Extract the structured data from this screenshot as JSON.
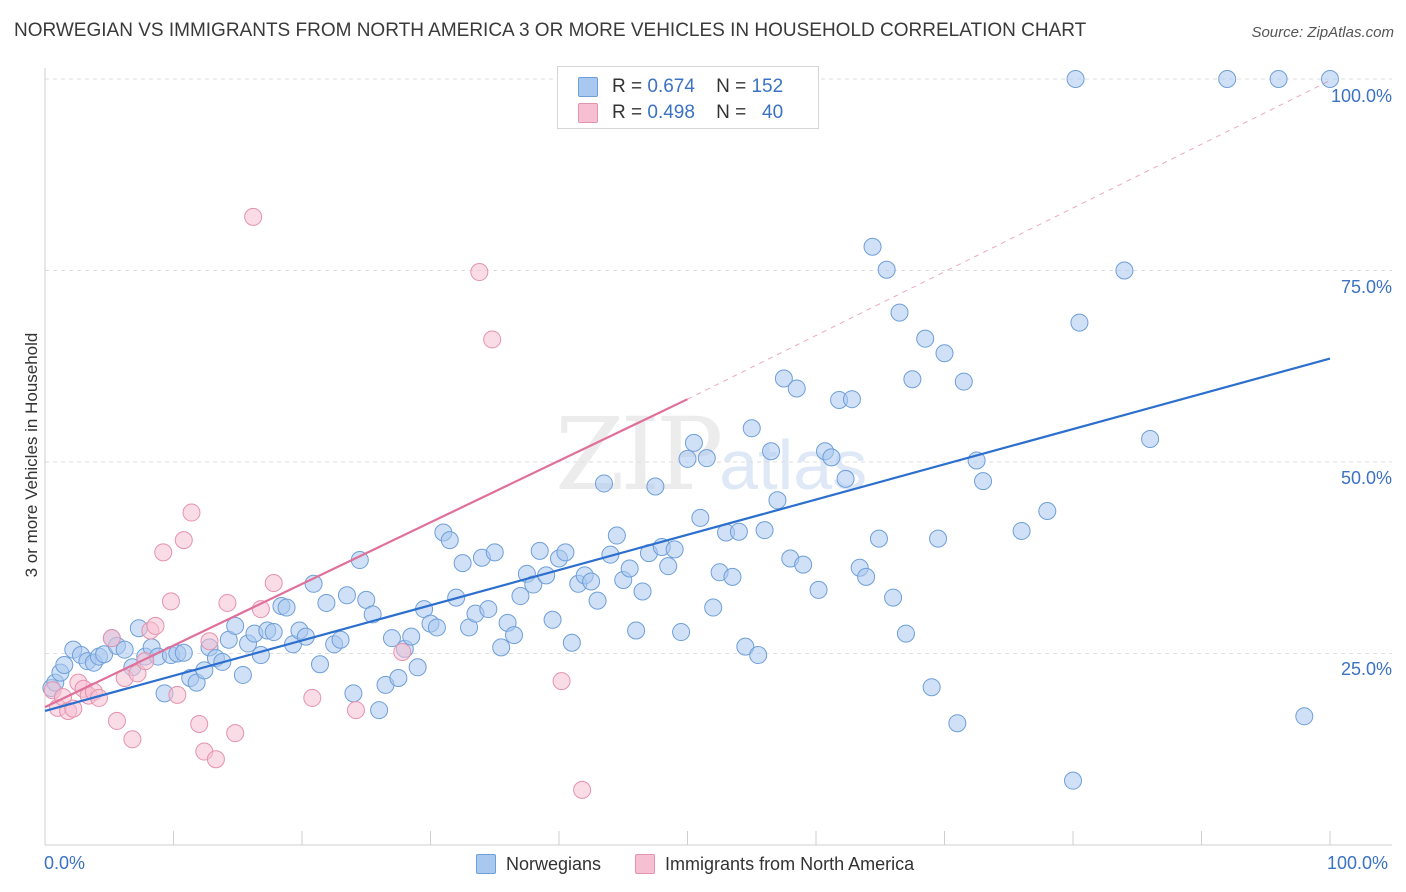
{
  "title": "NORWEGIAN VS IMMIGRANTS FROM NORTH AMERICA 3 OR MORE VEHICLES IN HOUSEHOLD CORRELATION CHART",
  "source": "Source: ZipAtlas.com",
  "watermark": {
    "zip": "ZIP",
    "atlas": "atlas"
  },
  "legend_top": [
    {
      "r_label": "R =",
      "r_value": "0.674",
      "n_label": "N =",
      "n_value": "152",
      "color": "#a9c8f0",
      "stroke": "#6f9fd8"
    },
    {
      "r_label": "R =",
      "r_value": "0.498",
      "n_label": "N =",
      "n_value": "40",
      "color": "#f6c0d2",
      "stroke": "#e593ad"
    }
  ],
  "chart_data": {
    "type": "scatter",
    "title": "NORWEGIAN VS IMMIGRANTS FROM NORTH AMERICA 3 OR MORE VEHICLES IN HOUSEHOLD CORRELATION CHART",
    "xlabel": "",
    "ylabel": "3 or more Vehicles in Household",
    "xlim": [
      0,
      100
    ],
    "ylim": [
      0,
      100
    ],
    "x_tick_labels": [
      "0.0%",
      "100.0%"
    ],
    "y_tick_labels": [
      {
        "value": 100,
        "label": "100.0%"
      },
      {
        "value": 75,
        "label": "75.0%"
      },
      {
        "value": 50,
        "label": "50.0%"
      },
      {
        "value": 25,
        "label": "25.0%"
      }
    ],
    "grid": true,
    "legend_position": "bottom",
    "series": [
      {
        "name": "Norwegians",
        "color": "#a9c8f0",
        "stroke": "#6f9fd8",
        "trend_color": "#2c6fce",
        "trend": {
          "x0": 0,
          "y0": 17.5,
          "x1": 100,
          "y1": 63.5
        },
        "points": [
          [
            0.5,
            20.5
          ],
          [
            0.8,
            21.2
          ],
          [
            1.2,
            22.5
          ],
          [
            1.5,
            23.5
          ],
          [
            2.2,
            25.5
          ],
          [
            2.8,
            24.8
          ],
          [
            3.3,
            24.0
          ],
          [
            3.8,
            23.8
          ],
          [
            4.2,
            24.6
          ],
          [
            4.6,
            24.9
          ],
          [
            5.2,
            27.0
          ],
          [
            5.6,
            26.0
          ],
          [
            6.2,
            25.5
          ],
          [
            6.8,
            23.2
          ],
          [
            7.3,
            28.3
          ],
          [
            7.8,
            24.6
          ],
          [
            8.3,
            25.8
          ],
          [
            8.8,
            24.6
          ],
          [
            9.3,
            19.8
          ],
          [
            9.8,
            24.8
          ],
          [
            10.3,
            25.0
          ],
          [
            10.8,
            25.1
          ],
          [
            11.3,
            21.8
          ],
          [
            11.8,
            21.2
          ],
          [
            12.4,
            22.8
          ],
          [
            12.8,
            25.8
          ],
          [
            13.3,
            24.4
          ],
          [
            13.8,
            23.9
          ],
          [
            14.3,
            26.8
          ],
          [
            14.8,
            28.6
          ],
          [
            15.4,
            22.2
          ],
          [
            15.8,
            26.3
          ],
          [
            16.3,
            27.6
          ],
          [
            16.8,
            24.8
          ],
          [
            17.3,
            28.0
          ],
          [
            17.8,
            27.8
          ],
          [
            18.4,
            31.2
          ],
          [
            18.8,
            31.0
          ],
          [
            19.3,
            26.2
          ],
          [
            19.8,
            28.0
          ],
          [
            20.3,
            27.2
          ],
          [
            20.9,
            34.1
          ],
          [
            21.4,
            23.6
          ],
          [
            21.9,
            31.6
          ],
          [
            22.5,
            26.2
          ],
          [
            23.0,
            26.8
          ],
          [
            23.5,
            32.6
          ],
          [
            24.0,
            19.8
          ],
          [
            24.5,
            37.2
          ],
          [
            25.0,
            32.0
          ],
          [
            25.5,
            30.1
          ],
          [
            26.0,
            17.6
          ],
          [
            26.5,
            20.9
          ],
          [
            27.0,
            27.0
          ],
          [
            27.5,
            21.8
          ],
          [
            28.0,
            25.6
          ],
          [
            28.5,
            27.2
          ],
          [
            29.0,
            23.2
          ],
          [
            29.5,
            30.8
          ],
          [
            30.0,
            28.9
          ],
          [
            30.5,
            28.4
          ],
          [
            31.0,
            40.8
          ],
          [
            31.5,
            39.8
          ],
          [
            32.0,
            32.3
          ],
          [
            32.5,
            36.8
          ],
          [
            33.0,
            28.4
          ],
          [
            33.5,
            30.2
          ],
          [
            34.0,
            37.5
          ],
          [
            34.5,
            30.8
          ],
          [
            35.0,
            38.2
          ],
          [
            35.5,
            25.8
          ],
          [
            36.0,
            29.0
          ],
          [
            36.5,
            27.4
          ],
          [
            37.0,
            32.5
          ],
          [
            37.5,
            35.4
          ],
          [
            38.0,
            34.0
          ],
          [
            38.5,
            38.4
          ],
          [
            39.0,
            35.2
          ],
          [
            39.5,
            29.4
          ],
          [
            40.0,
            37.4
          ],
          [
            40.5,
            38.2
          ],
          [
            41.0,
            26.4
          ],
          [
            41.5,
            34.1
          ],
          [
            42.0,
            35.2
          ],
          [
            42.5,
            34.4
          ],
          [
            43.0,
            31.9
          ],
          [
            43.5,
            47.2
          ],
          [
            44.0,
            37.9
          ],
          [
            44.5,
            40.4
          ],
          [
            45.0,
            34.6
          ],
          [
            45.5,
            36.1
          ],
          [
            46.0,
            28.0
          ],
          [
            46.5,
            33.1
          ],
          [
            47.0,
            38.1
          ],
          [
            47.5,
            46.8
          ],
          [
            48.0,
            38.9
          ],
          [
            48.5,
            36.4
          ],
          [
            49.0,
            38.6
          ],
          [
            49.5,
            27.8
          ],
          [
            50.0,
            50.4
          ],
          [
            50.5,
            52.5
          ],
          [
            51.0,
            42.7
          ],
          [
            51.5,
            50.5
          ],
          [
            52.0,
            31.0
          ],
          [
            52.5,
            35.6
          ],
          [
            53.0,
            40.8
          ],
          [
            53.5,
            35.0
          ],
          [
            54.0,
            40.9
          ],
          [
            54.5,
            25.9
          ],
          [
            55.0,
            54.4
          ],
          [
            55.5,
            24.8
          ],
          [
            56.0,
            41.1
          ],
          [
            56.5,
            51.4
          ],
          [
            57.0,
            45.0
          ],
          [
            57.5,
            60.9
          ],
          [
            58.0,
            37.4
          ],
          [
            58.5,
            59.6
          ],
          [
            59.0,
            36.6
          ],
          [
            60.2,
            33.3
          ],
          [
            60.7,
            51.4
          ],
          [
            61.2,
            50.6
          ],
          [
            61.8,
            58.1
          ],
          [
            62.3,
            47.8
          ],
          [
            62.8,
            58.2
          ],
          [
            63.4,
            36.2
          ],
          [
            63.9,
            35.0
          ],
          [
            64.4,
            78.1
          ],
          [
            64.9,
            40.0
          ],
          [
            65.5,
            75.1
          ],
          [
            66.0,
            32.3
          ],
          [
            66.5,
            69.5
          ],
          [
            67.0,
            27.6
          ],
          [
            67.5,
            60.8
          ],
          [
            68.5,
            66.1
          ],
          [
            69.0,
            20.6
          ],
          [
            69.5,
            40.0
          ],
          [
            70.0,
            64.2
          ],
          [
            71.0,
            15.9
          ],
          [
            71.5,
            60.5
          ],
          [
            72.5,
            50.2
          ],
          [
            73.0,
            47.5
          ],
          [
            76.0,
            41.0
          ],
          [
            78.0,
            43.6
          ],
          [
            80.5,
            68.2
          ],
          [
            80.0,
            8.4
          ],
          [
            84.0,
            75.0
          ],
          [
            86.0,
            53.0
          ],
          [
            92.0,
            100.0
          ],
          [
            96.0,
            100.0
          ],
          [
            98.0,
            16.8
          ],
          [
            100.0,
            100.0
          ],
          [
            80.2,
            100.0
          ]
        ]
      },
      {
        "name": "Immigrants from North America",
        "color": "#f6c0d2",
        "stroke": "#e593ad",
        "trend_color": "#e0709a",
        "trend": {
          "x0": 0,
          "y0": 18.0,
          "x1": 50,
          "y1": 58.2
        },
        "trend_extension": {
          "x0": 50,
          "y0": 58.2,
          "x1": 100,
          "y1": 99.8
        },
        "points": [
          [
            0.6,
            20.2
          ],
          [
            1.0,
            17.9
          ],
          [
            1.4,
            19.3
          ],
          [
            1.8,
            17.5
          ],
          [
            2.2,
            17.8
          ],
          [
            2.6,
            21.2
          ],
          [
            3.0,
            20.4
          ],
          [
            3.4,
            19.5
          ],
          [
            3.8,
            20.0
          ],
          [
            4.2,
            19.2
          ],
          [
            5.2,
            27.0
          ],
          [
            5.6,
            16.2
          ],
          [
            6.2,
            21.8
          ],
          [
            6.8,
            13.8
          ],
          [
            7.2,
            22.4
          ],
          [
            7.8,
            24.0
          ],
          [
            8.2,
            28.0
          ],
          [
            8.6,
            28.6
          ],
          [
            9.2,
            38.2
          ],
          [
            9.8,
            31.8
          ],
          [
            10.3,
            19.6
          ],
          [
            10.8,
            39.8
          ],
          [
            11.4,
            43.4
          ],
          [
            12.0,
            15.8
          ],
          [
            12.4,
            12.2
          ],
          [
            12.8,
            26.6
          ],
          [
            13.3,
            11.2
          ],
          [
            14.2,
            31.6
          ],
          [
            14.8,
            14.6
          ],
          [
            16.2,
            82.0
          ],
          [
            16.8,
            30.8
          ],
          [
            17.8,
            34.2
          ],
          [
            20.8,
            19.2
          ],
          [
            24.2,
            17.6
          ],
          [
            27.8,
            25.2
          ],
          [
            33.8,
            74.8
          ],
          [
            34.8,
            66.0
          ],
          [
            40.2,
            21.4
          ],
          [
            41.8,
            7.2
          ],
          [
            50.0,
            100.0
          ]
        ]
      }
    ]
  }
}
